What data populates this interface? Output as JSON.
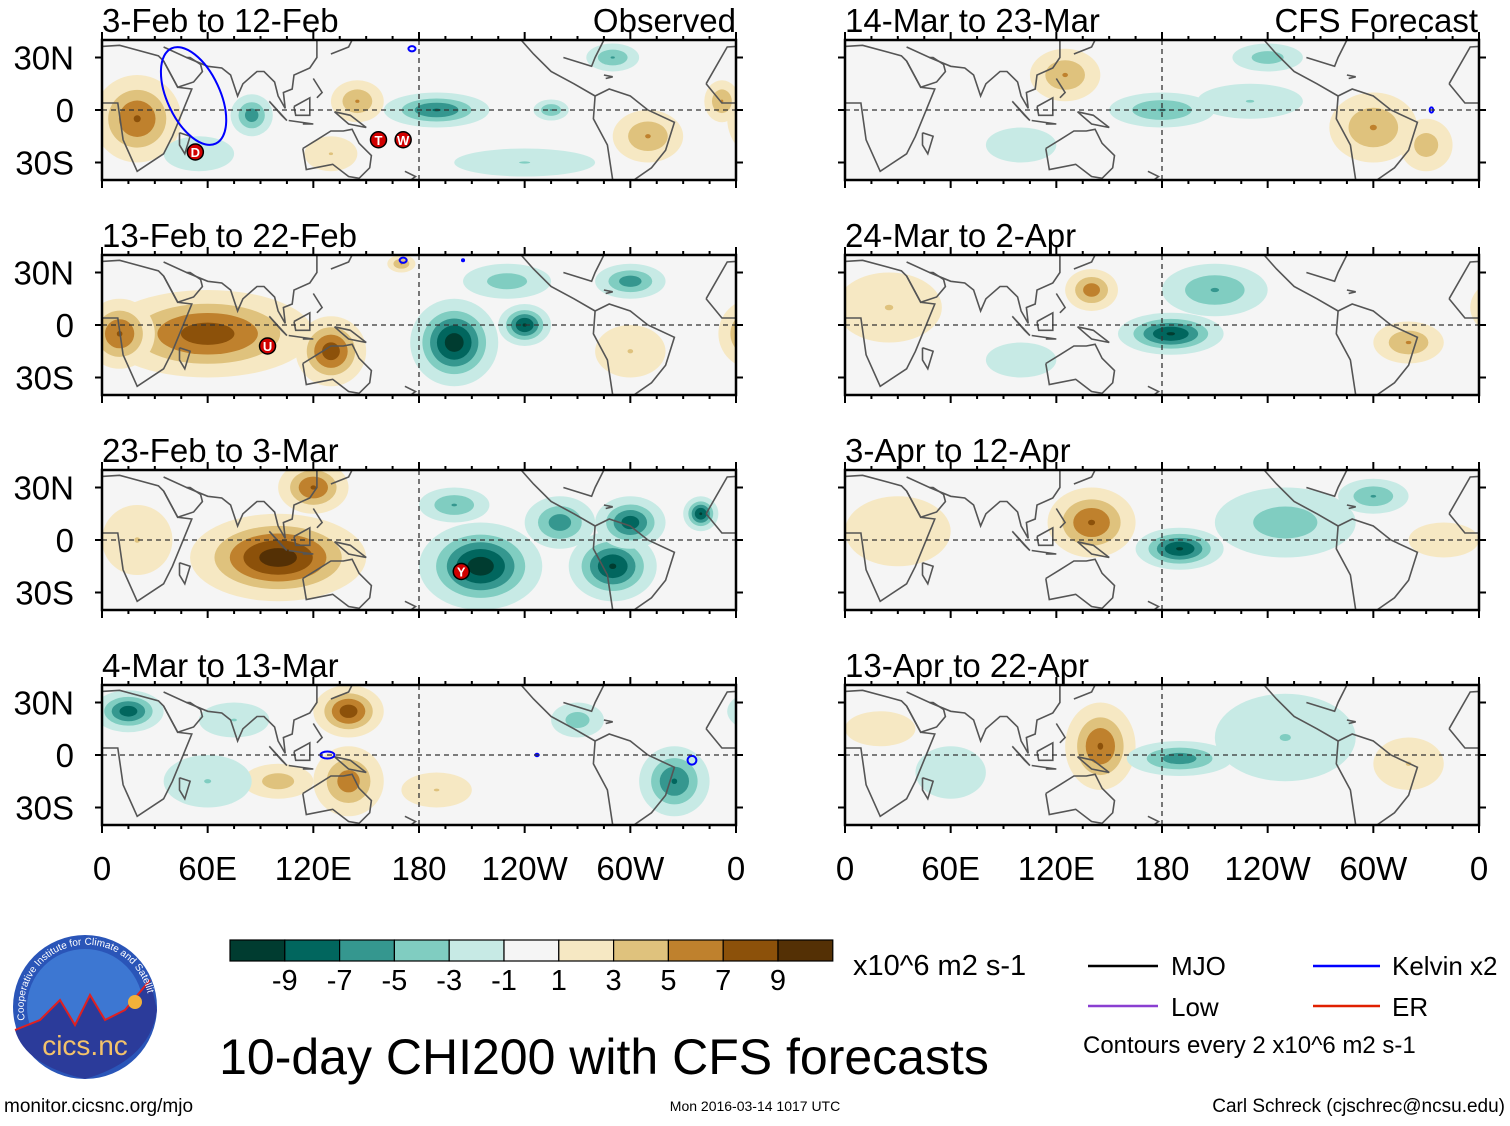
{
  "figure": {
    "title": "10-day CHI200 with CFS forecasts",
    "url": "monitor.cicsnc.org/mjo",
    "timestamp": "Mon 2016-03-14 1017 UTC",
    "author": "Carl Schreck (cjschrec@ncsu.edu)",
    "logo_text": "cics.nc",
    "logo_ring_text": "Cooperative Institute for Climate and Satellites"
  },
  "labels": {
    "observed": "Observed",
    "forecast": "CFS Forecast"
  },
  "lat_ticks": [
    "30N",
    "0",
    "30S"
  ],
  "lon_ticks": [
    "0",
    "60E",
    "120E",
    "180",
    "120W",
    "60W",
    "0"
  ],
  "colorbar": {
    "unit": "x10^6 m2 s-1",
    "tick_labels": [
      "-9",
      "-7",
      "-5",
      "-3",
      "-1",
      "1",
      "3",
      "5",
      "7",
      "9"
    ],
    "colors": [
      "#003c30",
      "#01665e",
      "#35978f",
      "#80cdc1",
      "#c7eae5",
      "#f5f5f5",
      "#f6e8c3",
      "#dfc27d",
      "#bf812d",
      "#8c510a",
      "#543005"
    ]
  },
  "legend": {
    "items": [
      {
        "label": "MJO",
        "color": "#000000"
      },
      {
        "label": "Kelvin x2",
        "color": "#0000ff"
      },
      {
        "label": "Low",
        "color": "#8a3fd1"
      },
      {
        "label": "ER",
        "color": "#e02000"
      }
    ],
    "contours_note": "Contours every 2 x10^6 m2 s-1"
  },
  "chart_data": {
    "type": "heatmap",
    "variable": "CHI200 anomaly",
    "units": "x10^6 m2 s-1",
    "lon_range": [
      0,
      360
    ],
    "lat_range": [
      -40,
      40
    ],
    "panels": [
      {
        "title": "3-Feb to 12-Feb",
        "kind": "observed",
        "anomalies": [
          [
            20,
            -5,
            7,
            25,
            25
          ],
          [
            145,
            5,
            5,
            15,
            12
          ],
          [
            130,
            -25,
            3,
            15,
            10
          ],
          [
            85,
            -3,
            -6,
            12,
            12
          ],
          [
            190,
            0,
            -7,
            30,
            10
          ],
          [
            255,
            0,
            -5,
            10,
            6
          ],
          [
            290,
            30,
            -5,
            15,
            8
          ],
          [
            310,
            -15,
            5,
            20,
            15
          ],
          [
            352,
            5,
            5,
            10,
            12
          ],
          [
            240,
            -30,
            -3,
            40,
            8
          ],
          [
            55,
            -25,
            -1.5,
            20,
            10
          ]
        ],
        "storms": [
          {
            "label": "D",
            "lon": 53,
            "lat": -24
          },
          {
            "label": "T",
            "lon": 157,
            "lat": -17
          },
          {
            "label": "W",
            "lon": 171,
            "lat": -17
          }
        ],
        "kelvin": [
          [
            52,
            8,
            15,
            30,
            -25
          ],
          [
            176,
            35,
            2,
            1.5,
            0
          ]
        ]
      },
      {
        "title": "13-Feb to 22-Feb",
        "kind": "observed",
        "anomalies": [
          [
            60,
            -5,
            8,
            60,
            25
          ],
          [
            130,
            -15,
            8,
            20,
            20
          ],
          [
            10,
            -5,
            7,
            20,
            20
          ],
          [
            200,
            -10,
            -10,
            25,
            25
          ],
          [
            240,
            0,
            -9,
            15,
            12
          ],
          [
            300,
            25,
            -6,
            20,
            10
          ],
          [
            170,
            35,
            5,
            8,
            5
          ],
          [
            300,
            -15,
            3,
            20,
            15
          ],
          [
            230,
            25,
            -4,
            25,
            10
          ]
        ],
        "storms": [
          {
            "label": "U",
            "lon": 94,
            "lat": -12
          }
        ],
        "kelvin": [
          [
            171,
            37,
            2,
            1.5,
            0
          ],
          [
            205,
            37,
            0.6,
            0.6,
            0
          ]
        ]
      },
      {
        "title": "23-Feb to 3-Mar",
        "kind": "observed",
        "anomalies": [
          [
            100,
            -10,
            10,
            50,
            25
          ],
          [
            120,
            30,
            7,
            20,
            15
          ],
          [
            20,
            0,
            3,
            20,
            20
          ],
          [
            215,
            -15,
            -10,
            35,
            25
          ],
          [
            290,
            -15,
            -9,
            25,
            20
          ],
          [
            300,
            10,
            -8,
            20,
            15
          ],
          [
            340,
            15,
            -9,
            10,
            10
          ],
          [
            200,
            20,
            -5,
            20,
            10
          ],
          [
            260,
            10,
            -6,
            20,
            15
          ]
        ],
        "storms": [
          {
            "label": "Y",
            "lon": 204,
            "lat": -18
          }
        ],
        "kelvin": []
      },
      {
        "title": "4-Mar to 13-Mar",
        "kind": "observed",
        "anomalies": [
          [
            15,
            25,
            -8,
            20,
            12
          ],
          [
            140,
            25,
            8,
            20,
            15
          ],
          [
            140,
            -15,
            6,
            20,
            20
          ],
          [
            100,
            -15,
            4,
            20,
            10
          ],
          [
            60,
            -15,
            -3,
            25,
            15
          ],
          [
            325,
            -15,
            -7,
            20,
            20
          ],
          [
            270,
            20,
            -4,
            15,
            10
          ],
          [
            190,
            -20,
            3,
            20,
            10
          ],
          [
            75,
            20,
            -3,
            20,
            10
          ]
        ],
        "storms": [],
        "kelvin": [
          [
            128,
            0,
            4,
            2,
            0
          ],
          [
            247,
            0,
            1,
            0.7,
            0
          ],
          [
            335,
            -3,
            2.5,
            2.5,
            0
          ]
        ]
      },
      {
        "title": "14-Mar to 23-Mar",
        "kind": "forecast",
        "anomalies": [
          [
            125,
            20,
            5,
            20,
            15
          ],
          [
            180,
            0,
            -5,
            30,
            10
          ],
          [
            230,
            5,
            -3,
            30,
            10
          ],
          [
            300,
            -10,
            5,
            25,
            20
          ],
          [
            330,
            -20,
            4,
            15,
            15
          ],
          [
            240,
            30,
            -4,
            20,
            8
          ],
          [
            100,
            -20,
            -2,
            20,
            10
          ]
        ],
        "storms": [],
        "kelvin": [
          [
            333,
            0,
            1,
            1.5,
            0
          ]
        ]
      },
      {
        "title": "24-Mar to 2-Apr",
        "kind": "forecast",
        "anomalies": [
          [
            185,
            -5,
            -9,
            30,
            12
          ],
          [
            210,
            20,
            -5,
            30,
            15
          ],
          [
            140,
            20,
            6,
            15,
            12
          ],
          [
            25,
            10,
            3,
            30,
            20
          ],
          [
            320,
            -10,
            5,
            20,
            12
          ],
          [
            100,
            -20,
            -2,
            20,
            10
          ]
        ],
        "storms": [],
        "kelvin": []
      },
      {
        "title": "3-Apr to 12-Apr",
        "kind": "forecast",
        "anomalies": [
          [
            140,
            10,
            7,
            25,
            20
          ],
          [
            190,
            -5,
            -9,
            25,
            12
          ],
          [
            250,
            10,
            -4,
            40,
            20
          ],
          [
            300,
            25,
            -5,
            20,
            10
          ],
          [
            30,
            5,
            2,
            30,
            20
          ],
          [
            340,
            0,
            2,
            20,
            10
          ]
        ],
        "storms": [],
        "kelvin": []
      },
      {
        "title": "13-Apr to 22-Apr",
        "kind": "forecast",
        "anomalies": [
          [
            145,
            5,
            7,
            20,
            25
          ],
          [
            190,
            -2,
            -6,
            30,
            10
          ],
          [
            250,
            10,
            -3,
            40,
            25
          ],
          [
            320,
            -5,
            3,
            20,
            15
          ],
          [
            60,
            -10,
            -2,
            20,
            15
          ],
          [
            20,
            15,
            2,
            20,
            10
          ]
        ],
        "storms": [],
        "kelvin": []
      }
    ]
  }
}
